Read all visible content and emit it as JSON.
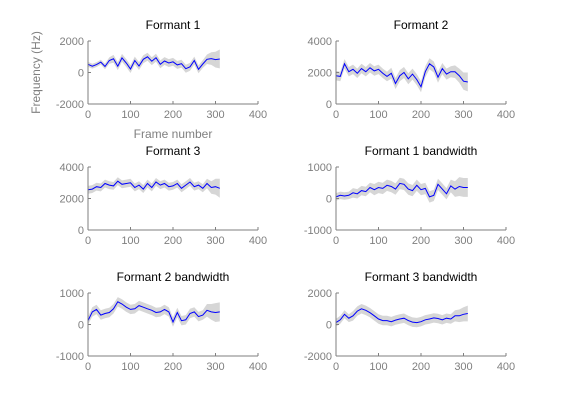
{
  "figure": {
    "ylabel": "Frequency (Hz)",
    "xlabel": "Frame number"
  },
  "colors": {
    "line": "#0000ff",
    "band": "#cfcfcf",
    "axis": "#7f7f7f",
    "title": "#000000"
  },
  "chart_data": [
    {
      "type": "line",
      "title": "Formant 1",
      "xlabel": "Frame number",
      "ylabel": "Frequency (Hz)",
      "xlim": [
        0,
        400
      ],
      "ylim": [
        -2000,
        2000
      ],
      "xticks": [
        "0",
        "100",
        "200",
        "300",
        "400"
      ],
      "yticks": [
        "-2000",
        "0",
        "2000"
      ],
      "x": [
        0,
        10,
        20,
        30,
        40,
        50,
        60,
        70,
        80,
        90,
        100,
        110,
        120,
        130,
        140,
        150,
        160,
        170,
        180,
        190,
        200,
        210,
        220,
        230,
        240,
        250,
        260,
        270,
        280,
        290,
        300,
        310
      ],
      "series": [
        {
          "values": [
            520,
            400,
            500,
            660,
            380,
            760,
            870,
            400,
            930,
            600,
            220,
            760,
            410,
            840,
            1000,
            720,
            940,
            520,
            730,
            600,
            680,
            480,
            560,
            240,
            360,
            760,
            200,
            540,
            840,
            880,
            820,
            860
          ],
          "band_halfwidth": [
            150,
            150,
            150,
            150,
            180,
            200,
            250,
            250,
            250,
            250,
            250,
            250,
            250,
            250,
            250,
            250,
            250,
            250,
            250,
            250,
            250,
            250,
            250,
            250,
            250,
            250,
            250,
            250,
            300,
            400,
            500,
            600
          ]
        }
      ]
    },
    {
      "type": "line",
      "title": "Formant 2",
      "xlim": [
        0,
        400
      ],
      "ylim": [
        0,
        4000
      ],
      "xticks": [
        "0",
        "100",
        "200",
        "300",
        "400"
      ],
      "yticks": [
        "0",
        "2000",
        "4000"
      ],
      "x": [
        0,
        10,
        20,
        30,
        40,
        50,
        60,
        70,
        80,
        90,
        100,
        110,
        120,
        130,
        140,
        150,
        160,
        170,
        180,
        190,
        200,
        210,
        220,
        230,
        240,
        250,
        260,
        270,
        280,
        290,
        300,
        310
      ],
      "series": [
        {
          "values": [
            1800,
            1750,
            2550,
            2050,
            2200,
            1950,
            2250,
            2050,
            2300,
            2100,
            2200,
            1950,
            1750,
            1950,
            1300,
            1800,
            2000,
            1600,
            1900,
            1550,
            1100,
            2050,
            2550,
            2350,
            1700,
            2250,
            1900,
            2050,
            2050,
            1800,
            1450,
            1400
          ],
          "band_halfwidth": [
            300,
            300,
            300,
            300,
            300,
            300,
            300,
            300,
            300,
            300,
            300,
            300,
            300,
            350,
            350,
            350,
            350,
            350,
            350,
            350,
            350,
            350,
            350,
            350,
            350,
            350,
            350,
            350,
            400,
            450,
            550,
            600
          ]
        }
      ]
    },
    {
      "type": "line",
      "title": "Formant 3",
      "xlim": [
        0,
        400
      ],
      "ylim": [
        0,
        4000
      ],
      "xticks": [
        "0",
        "100",
        "200",
        "300",
        "400"
      ],
      "yticks": [
        "0",
        "2000",
        "4000"
      ],
      "x": [
        0,
        10,
        20,
        30,
        40,
        50,
        60,
        70,
        80,
        90,
        100,
        110,
        120,
        130,
        140,
        150,
        160,
        170,
        180,
        190,
        200,
        210,
        220,
        230,
        240,
        250,
        260,
        270,
        280,
        290,
        300,
        310
      ],
      "series": [
        {
          "values": [
            2550,
            2600,
            2750,
            2700,
            2950,
            2850,
            2800,
            3100,
            2900,
            2950,
            3000,
            2700,
            2850,
            2600,
            2950,
            2700,
            3050,
            2850,
            2950,
            2750,
            2800,
            2950,
            2650,
            2850,
            3050,
            2750,
            2850,
            2650,
            2950,
            2700,
            2750,
            2650
          ],
          "band_halfwidth": [
            250,
            250,
            250,
            250,
            250,
            250,
            250,
            250,
            250,
            250,
            250,
            250,
            250,
            250,
            250,
            250,
            250,
            250,
            250,
            250,
            250,
            250,
            250,
            250,
            250,
            250,
            250,
            250,
            300,
            400,
            500,
            600
          ]
        }
      ]
    },
    {
      "type": "line",
      "title": "Formant 1 bandwidth",
      "xlim": [
        0,
        400
      ],
      "ylim": [
        -1000,
        1000
      ],
      "xticks": [
        "0",
        "100",
        "200",
        "300",
        "400"
      ],
      "yticks": [
        "-1000",
        "0",
        "1000"
      ],
      "x": [
        0,
        10,
        20,
        30,
        40,
        50,
        60,
        70,
        80,
        90,
        100,
        110,
        120,
        130,
        140,
        150,
        160,
        170,
        180,
        190,
        200,
        210,
        220,
        230,
        240,
        250,
        260,
        270,
        280,
        290,
        300,
        310
      ],
      "series": [
        {
          "values": [
            50,
            100,
            80,
            100,
            180,
            150,
            250,
            220,
            350,
            280,
            350,
            320,
            420,
            380,
            300,
            480,
            450,
            300,
            250,
            420,
            280,
            320,
            50,
            100,
            450,
            300,
            150,
            400,
            300,
            380,
            350,
            350
          ],
          "band_halfwidth": [
            120,
            120,
            120,
            120,
            150,
            150,
            150,
            150,
            150,
            180,
            180,
            180,
            180,
            180,
            180,
            180,
            180,
            180,
            180,
            180,
            180,
            180,
            180,
            180,
            180,
            180,
            180,
            200,
            250,
            300,
            300,
            300
          ]
        }
      ]
    },
    {
      "type": "line",
      "title": "Formant 2 bandwidth",
      "xlim": [
        0,
        400
      ],
      "ylim": [
        -1000,
        1000
      ],
      "xticks": [
        "0",
        "100",
        "200",
        "300",
        "400"
      ],
      "yticks": [
        "-1000",
        "0",
        "1000"
      ],
      "x": [
        0,
        10,
        20,
        30,
        40,
        50,
        60,
        70,
        80,
        90,
        100,
        110,
        120,
        130,
        140,
        150,
        160,
        170,
        180,
        190,
        200,
        210,
        220,
        230,
        240,
        250,
        260,
        270,
        280,
        290,
        300,
        310
      ],
      "series": [
        {
          "values": [
            120,
            400,
            480,
            300,
            350,
            380,
            500,
            720,
            650,
            550,
            480,
            500,
            600,
            550,
            500,
            450,
            380,
            400,
            480,
            400,
            80,
            380,
            120,
            150,
            350,
            400,
            250,
            300,
            450,
            400,
            380,
            400
          ],
          "band_halfwidth": [
            120,
            150,
            150,
            150,
            150,
            150,
            150,
            150,
            150,
            150,
            150,
            150,
            150,
            150,
            150,
            150,
            150,
            150,
            150,
            150,
            150,
            150,
            150,
            150,
            150,
            150,
            150,
            150,
            200,
            250,
            300,
            300
          ]
        }
      ]
    },
    {
      "type": "line",
      "title": "Formant 3 bandwidth",
      "xlim": [
        0,
        400
      ],
      "ylim": [
        -2000,
        2000
      ],
      "xticks": [
        "0",
        "100",
        "200",
        "300",
        "400"
      ],
      "yticks": [
        "-2000",
        "0",
        "2000"
      ],
      "x": [
        0,
        10,
        20,
        30,
        40,
        50,
        60,
        70,
        80,
        90,
        100,
        110,
        120,
        130,
        140,
        150,
        160,
        170,
        180,
        190,
        200,
        210,
        220,
        230,
        240,
        250,
        260,
        270,
        280,
        290,
        300,
        310
      ],
      "series": [
        {
          "values": [
            120,
            300,
            650,
            400,
            550,
            850,
            1000,
            900,
            750,
            550,
            350,
            250,
            250,
            180,
            280,
            350,
            400,
            250,
            150,
            120,
            180,
            300,
            350,
            420,
            380,
            300,
            400,
            350,
            550,
            550,
            650,
            700
          ],
          "band_halfwidth": [
            250,
            250,
            250,
            250,
            300,
            300,
            300,
            300,
            300,
            300,
            300,
            300,
            300,
            300,
            300,
            300,
            300,
            300,
            300,
            300,
            300,
            300,
            300,
            300,
            300,
            300,
            300,
            300,
            350,
            400,
            450,
            500
          ]
        }
      ]
    }
  ]
}
